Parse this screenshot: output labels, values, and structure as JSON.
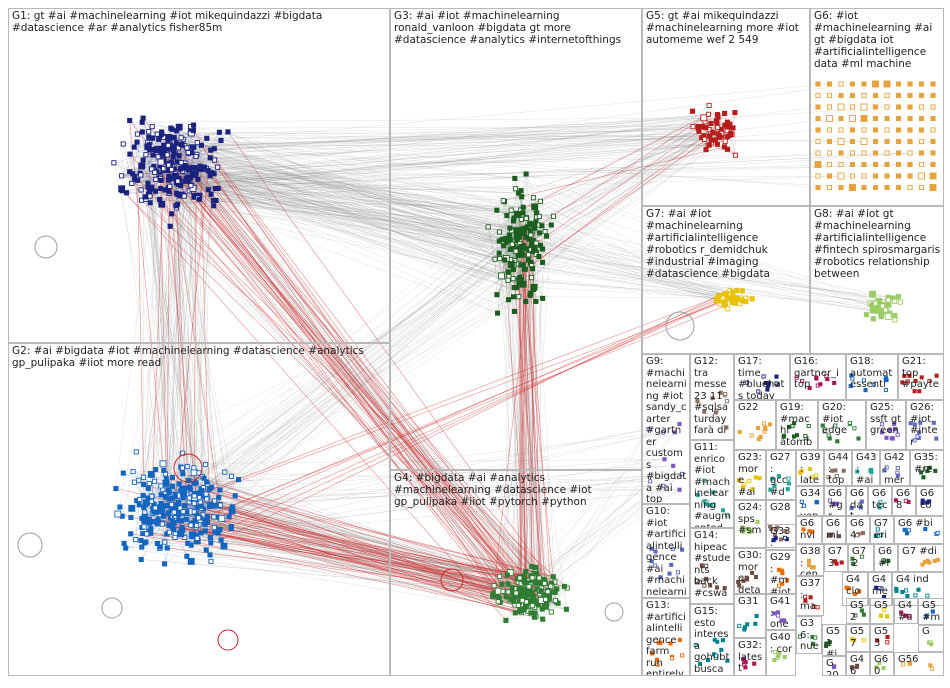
{
  "graph": {
    "groups": [
      {
        "id": "G1",
        "label": "G1: gt #ai #machinelearning #iot mikequindazzi #bigdata #datascience #ar #analytics fisher85m",
        "color": "#1a237e"
      },
      {
        "id": "G2",
        "label": "G2: #ai #bigdata #iot #machinelearning #datascience #analytics gp_pulipaka #iiot more read",
        "color": "#1565c0"
      },
      {
        "id": "G3",
        "label": "G3: #ai #iot #machinelearning ronald_vanloon #bigdata gt more #datascience #analytics #internetofthings",
        "color": "#1b5e20"
      },
      {
        "id": "G4",
        "label": "G4: #bigdata #ai #analytics #machinelearning #datascience #iot gp_pulipaka #iiot #pytorch #python",
        "color": "#2e7d32"
      },
      {
        "id": "G5",
        "label": "G5: gt #ai mikequindazzi #machinelearning more #iot automeme wef 2 549",
        "color": "#b71c1c"
      },
      {
        "id": "G6",
        "label": "G6: #iot #machinelearning #ai gt #bigdata iot #artificialintelligence data #ml machine",
        "color": "#e6a23c"
      },
      {
        "id": "G7",
        "label": "G7: #ai #iot #machinelearning #artificialintelligence #robotics r_demidchuk #industrial #imaging #datascience #bigdata",
        "color": "#e6c200"
      },
      {
        "id": "G8",
        "label": "G8: #ai #iot gt #machinelearning #artificialintelligence #fintech spirosmargaris #robotics relationship between",
        "color": "#9ccc65"
      },
      {
        "id": "G9",
        "label": "G9: #machinelearning #iot sandy_carter #gartner custom s #bigdata #ai top awscloud",
        "color": "#7e57c2"
      },
      {
        "id": "G10",
        "label": "G10: #iot #artificialintelligence #ai #machinelearning #bigdata #blockchain"
      },
      {
        "id": "G11",
        "label": "G11: enrico #iot #machinelearning #augmented increa"
      },
      {
        "id": "G12",
        "label": "G12: tra messe 23 11 #sqlsaturday farà di nuovo"
      },
      {
        "id": "G13",
        "label": "G13: #artificialintelligence farm run entirely #robots"
      },
      {
        "id": "G14",
        "label": "G14: hipeac #students back #cswa"
      },
      {
        "id": "G15",
        "label": "G15: esto interesa gohubt busca"
      },
      {
        "id": "G16",
        "label": "G16: gartner_i top"
      },
      {
        "id": "G17",
        "label": "G17: time #bluehats today"
      },
      {
        "id": "G18",
        "label": "G18: automat essenti"
      },
      {
        "id": "G19",
        "label": "G19: #machi atomb"
      },
      {
        "id": "G20",
        "label": "G20: #iot edge"
      },
      {
        "id": "G21",
        "label": "G21: top #payte"
      },
      {
        "id": "G22",
        "label": "G22"
      },
      {
        "id": "G23",
        "label": "G23: more #ai"
      },
      {
        "id": "G24",
        "label": "G24: sps #sm"
      },
      {
        "id": "G25",
        "label": "G25: ssft gt green"
      },
      {
        "id": "G26",
        "label": "G26: #iot #inter"
      },
      {
        "id": "G27",
        "label": "G27: gcc #dm"
      },
      {
        "id": "G28",
        "label": "G28"
      },
      {
        "id": "G29",
        "label": "G29: #m #iot"
      },
      {
        "id": "G30",
        "label": "G30: more detai"
      },
      {
        "id": "G31",
        "label": "G31"
      },
      {
        "id": "G32",
        "label": "G32: latest rajde"
      },
      {
        "id": "G33",
        "label": "G33: key"
      },
      {
        "id": "G34",
        "label": "G34: ven"
      },
      {
        "id": "G35",
        "label": "G35: #re"
      },
      {
        "id": "G36",
        "label": "G36: nue"
      },
      {
        "id": "G37",
        "label": "G37: ma"
      },
      {
        "id": "G38",
        "label": "G38: cen"
      },
      {
        "id": "G39",
        "label": "G39: late"
      },
      {
        "id": "G40",
        "label": "G40: cor"
      },
      {
        "id": "G41",
        "label": "G41: one"
      },
      {
        "id": "G42",
        "label": "G42: mer"
      },
      {
        "id": "G43",
        "label": "G43: #ai"
      },
      {
        "id": "G44",
        "label": "G44: top"
      },
      {
        "id": "G45",
        "label": "G4 clo"
      },
      {
        "id": "G46",
        "label": "G46"
      },
      {
        "id": "G47",
        "label": "G4 ind"
      },
      {
        "id": "G48",
        "label": "G4 #a"
      },
      {
        "id": "G49",
        "label": "G4 me"
      },
      {
        "id": "G50",
        "label": "G5 #m"
      },
      {
        "id": "G51",
        "label": "G51 #iot"
      },
      {
        "id": "G52",
        "label": "G52"
      },
      {
        "id": "G53",
        "label": "G53"
      },
      {
        "id": "G56",
        "label": "G56"
      },
      {
        "id": "G57",
        "label": "G57"
      },
      {
        "id": "G60",
        "label": "G60"
      },
      {
        "id": "G61",
        "label": "G6 #gr"
      },
      {
        "id": "G62",
        "label": "G6 dat"
      },
      {
        "id": "G63",
        "label": "G6 tec"
      },
      {
        "id": "G64",
        "label": "G64"
      },
      {
        "id": "G65",
        "label": "G6 nvi"
      },
      {
        "id": "G66",
        "label": "G6 ml"
      },
      {
        "id": "G67",
        "label": "G7 eri"
      },
      {
        "id": "G68",
        "label": "G68"
      },
      {
        "id": "G69",
        "label": "G6 co"
      },
      {
        "id": "G70",
        "label": "G6 #bi"
      },
      {
        "id": "G71",
        "label": "G6 #io"
      },
      {
        "id": "G72",
        "label": "G72"
      },
      {
        "id": "G73",
        "label": "G73"
      },
      {
        "id": "G74",
        "label": "G7 #di"
      },
      {
        "id": "G75",
        "label": "G5"
      },
      {
        "id": "G76",
        "label": "G"
      },
      {
        "id": "G77",
        "label": "G 20"
      }
    ]
  }
}
